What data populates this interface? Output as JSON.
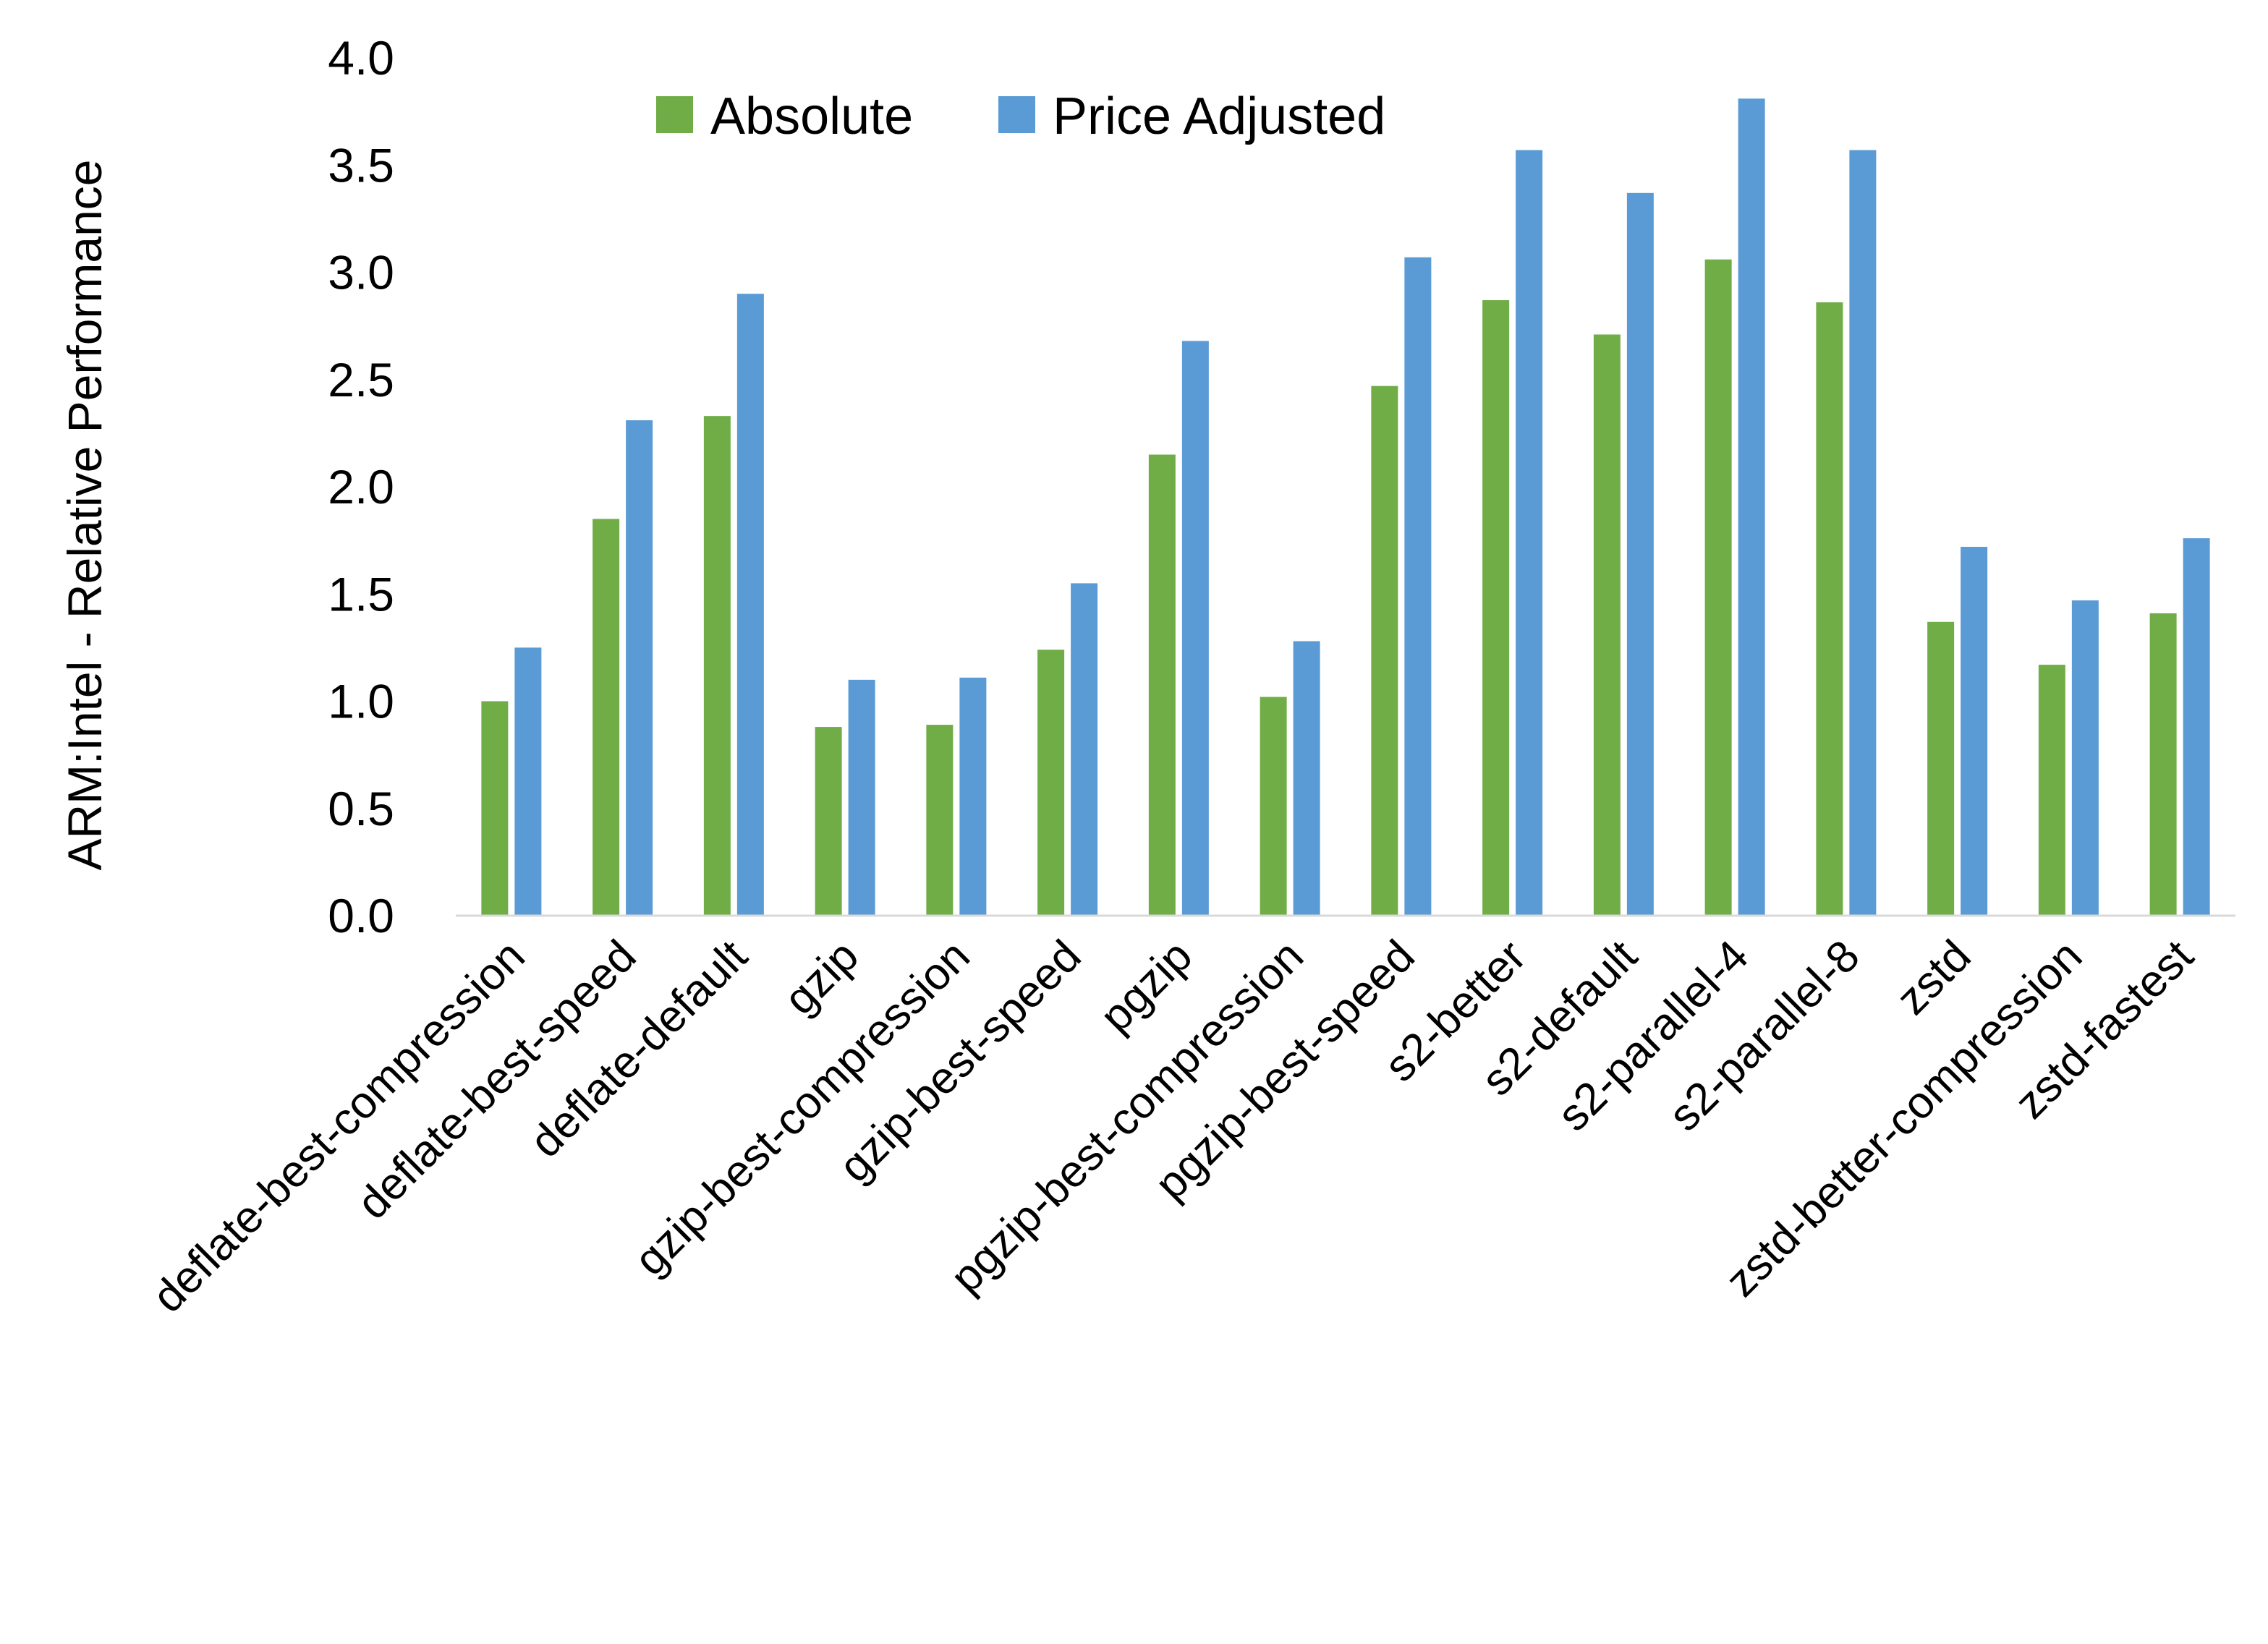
{
  "chart_data": {
    "type": "bar",
    "title": "",
    "xlabel": "",
    "ylabel": "ARM:Intel - Relative Performance",
    "ylim": [
      0,
      4.0
    ],
    "yticks": [
      "0.0",
      "0.5",
      "1.0",
      "1.5",
      "2.0",
      "2.5",
      "3.0",
      "3.5",
      "4.0"
    ],
    "grid": false,
    "legend_position": "top",
    "categories": [
      "deflate-best-compression",
      "deflate-best-speed",
      "deflate-default",
      "gzip",
      "gzip-best-compression",
      "gzip-best-speed",
      "pgzip",
      "pgzip-best-compression",
      "pgzip-best-speed",
      "s2-better",
      "s2-default",
      "s2-parallel-4",
      "s2-parallel-8",
      "zstd",
      "zstd-better-compression",
      "zstd-fastest"
    ],
    "series": [
      {
        "name": "Absolute",
        "color": "#70AD47",
        "values": [
          1.0,
          1.85,
          2.33,
          0.88,
          0.89,
          1.24,
          2.15,
          1.02,
          2.47,
          2.87,
          2.71,
          3.06,
          2.86,
          1.37,
          1.17,
          1.41
        ]
      },
      {
        "name": "Price Adjusted",
        "color": "#5B9BD5",
        "values": [
          1.25,
          2.31,
          2.9,
          1.1,
          1.11,
          1.55,
          2.68,
          1.28,
          3.07,
          3.57,
          3.37,
          3.81,
          3.57,
          1.72,
          1.47,
          1.76
        ]
      }
    ]
  }
}
